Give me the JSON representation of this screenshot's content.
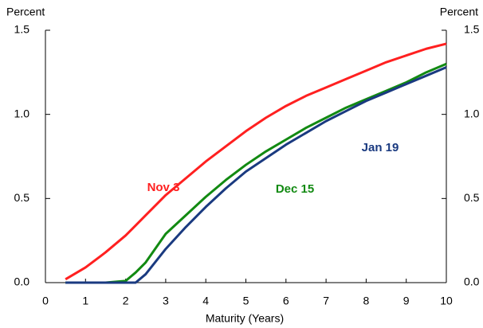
{
  "chart_data": {
    "type": "line",
    "ylabel": "Percent",
    "y2label": "Percent",
    "xlabel": "Maturity (Years)",
    "x": [
      0.5,
      1,
      1.5,
      2,
      2.25,
      2.5,
      3,
      3.5,
      4,
      4.5,
      5,
      5.5,
      6,
      6.5,
      7,
      7.5,
      8,
      8.5,
      9,
      9.5,
      10
    ],
    "series": [
      {
        "name": "Nov 3",
        "color": "#ff2020",
        "values": [
          0.02,
          0.09,
          0.18,
          0.28,
          0.34,
          0.4,
          0.52,
          0.62,
          0.72,
          0.81,
          0.9,
          0.98,
          1.05,
          1.11,
          1.16,
          1.21,
          1.26,
          1.31,
          1.35,
          1.39,
          1.42
        ]
      },
      {
        "name": "Dec 15",
        "color": "#128a12",
        "values": [
          0,
          0,
          0,
          0.01,
          0.06,
          0.12,
          0.29,
          0.4,
          0.51,
          0.61,
          0.7,
          0.78,
          0.85,
          0.92,
          0.98,
          1.04,
          1.09,
          1.14,
          1.19,
          1.25,
          1.3
        ]
      },
      {
        "name": "Jan 19",
        "color": "#1a3a80",
        "values": [
          0,
          0,
          0,
          0,
          0,
          0.05,
          0.2,
          0.33,
          0.45,
          0.56,
          0.66,
          0.74,
          0.82,
          0.89,
          0.96,
          1.02,
          1.08,
          1.13,
          1.18,
          1.23,
          1.28
        ]
      }
    ],
    "xlim": [
      0,
      10
    ],
    "xticks": [
      0,
      1,
      2,
      3,
      4,
      5,
      6,
      7,
      8,
      9,
      10
    ],
    "ylim": [
      0,
      1.5
    ],
    "yticks": [
      {
        "value": 0,
        "label": "0.0"
      },
      0.5,
      {
        "value": 1,
        "label": "1.0"
      },
      1.5
    ],
    "y2lim": [
      0,
      1.5
    ],
    "y2ticks": [
      {
        "value": 0,
        "label": "0.0"
      },
      0.5,
      {
        "value": 1,
        "label": "1.0"
      },
      1.5
    ]
  }
}
